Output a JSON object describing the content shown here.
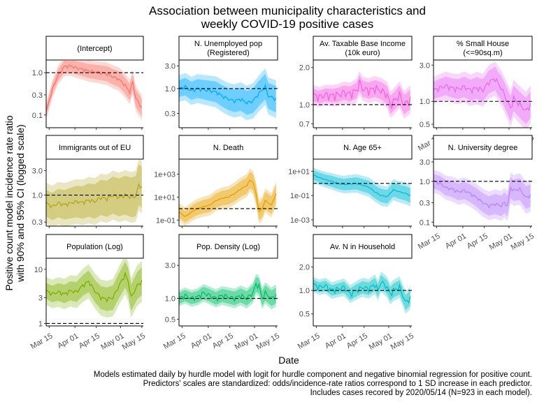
{
  "figure": {
    "title_lines": [
      "Association between municipality characteristics and",
      "weekly COVID-19 positive cases"
    ],
    "xlabel": "Date",
    "ylabel_lines": [
      "Positive count model incidence rate ratio",
      "with 90% and 95% CI (logged scale)"
    ],
    "caption_lines": [
      "Models estimated daily by hurdle model with logit for hurdle component and negative binomial regression for positive count.",
      "Predictors' scales are standardized: odds/incidence-rate ratios correspond to 1 SD increase in each predictor.",
      "Includes cases recored by 2020/05/14 (N=923 in each model)."
    ]
  },
  "chart_data": {
    "type": "line",
    "scale": "log",
    "x_range": [
      "2020-03-13",
      "2020-05-16"
    ],
    "x_ticks": [
      {
        "date": "2020-03-15",
        "label": "Mar 15"
      },
      {
        "date": "2020-04-01",
        "label": "Apr 01"
      },
      {
        "date": "2020-04-15",
        "label": "Apr 15"
      },
      {
        "date": "2020-05-01",
        "label": "May 01"
      },
      {
        "date": "2020-05-15",
        "label": "May 15"
      }
    ],
    "reference_line": 1,
    "panels": [
      {
        "label": "(Intercept)",
        "color": "#F8766D",
        "ylim": [
          0.05,
          2.0
        ],
        "y_ticks": [
          {
            "v": 0.1,
            "l": "0.1"
          },
          {
            "v": 0.3,
            "l": "0.3"
          },
          {
            "v": 1,
            "l": "1.0"
          }
        ],
        "estimate": [
          [
            0,
            0.12
          ],
          [
            4,
            0.4
          ],
          [
            8,
            0.9
          ],
          [
            12,
            1.4
          ],
          [
            16,
            1.45
          ],
          [
            20,
            1.3
          ],
          [
            24,
            1.2
          ],
          [
            28,
            1.1
          ],
          [
            32,
            1.05
          ],
          [
            36,
            1.0
          ],
          [
            40,
            0.95
          ],
          [
            44,
            0.8
          ],
          [
            48,
            0.7
          ],
          [
            52,
            0.5
          ],
          [
            55,
            0.35
          ],
          [
            57,
            0.6
          ],
          [
            59,
            0.25
          ],
          [
            63,
            0.15
          ]
        ],
        "ci90": [
          1.35,
          1.6
        ],
        "ci95": [
          1.6,
          2.0
        ]
      },
      {
        "label": "N. Unemployed pop (Registered)",
        "color": "#00A9FF",
        "ylim": [
          0.15,
          4.0
        ],
        "y_ticks": [
          {
            "v": 0.3,
            "l": "0.3"
          },
          {
            "v": 1,
            "l": "1.0"
          },
          {
            "v": 3,
            "l": "3.0"
          }
        ],
        "estimate": [
          [
            0,
            1.0
          ],
          [
            4,
            1.1
          ],
          [
            8,
            0.9
          ],
          [
            12,
            1.0
          ],
          [
            16,
            0.95
          ],
          [
            20,
            0.9
          ],
          [
            24,
            0.85
          ],
          [
            28,
            0.7
          ],
          [
            32,
            0.6
          ],
          [
            36,
            0.55
          ],
          [
            40,
            0.6
          ],
          [
            44,
            0.5
          ],
          [
            48,
            0.55
          ],
          [
            52,
            0.8
          ],
          [
            56,
            1.1
          ],
          [
            58,
            0.7
          ],
          [
            63,
            0.6
          ]
        ],
        "ci90": [
          1.5,
          1.9
        ],
        "ci95": [
          1.9,
          2.5
        ]
      },
      {
        "label": "Av. Taxable Base Income (10k euro)",
        "color": "#F564E3",
        "ylim": [
          0.65,
          2.3
        ],
        "y_ticks": [
          {
            "v": 0.7,
            "l": "0.7"
          },
          {
            "v": 1,
            "l": "1.0"
          },
          {
            "v": 2,
            "l": "2.0"
          }
        ],
        "estimate": [
          [
            0,
            1.2
          ],
          [
            4,
            1.15
          ],
          [
            8,
            1.2
          ],
          [
            12,
            1.18
          ],
          [
            16,
            1.2
          ],
          [
            20,
            1.25
          ],
          [
            24,
            1.22
          ],
          [
            28,
            1.3
          ],
          [
            30,
            1.5
          ],
          [
            32,
            1.35
          ],
          [
            36,
            1.3
          ],
          [
            40,
            1.35
          ],
          [
            44,
            1.3
          ],
          [
            48,
            1.2
          ],
          [
            50,
            1.0
          ],
          [
            52,
            1.05
          ],
          [
            56,
            1.2
          ],
          [
            59,
            1.0
          ],
          [
            63,
            1.1
          ]
        ],
        "ci90": [
          1.12,
          1.2
        ],
        "ci95": [
          1.2,
          1.3
        ]
      },
      {
        "label": "% Small House (<=90sq.m)",
        "color": "#E76BF3",
        "ylim": [
          0.45,
          3.5
        ],
        "y_ticks": [
          {
            "v": 0.5,
            "l": "0.5"
          },
          {
            "v": 1,
            "l": "1.0"
          },
          {
            "v": 3,
            "l": "3.0"
          }
        ],
        "estimate": [
          [
            0,
            1.4
          ],
          [
            4,
            1.5
          ],
          [
            8,
            1.6
          ],
          [
            12,
            1.5
          ],
          [
            16,
            1.45
          ],
          [
            20,
            1.55
          ],
          [
            24,
            1.4
          ],
          [
            28,
            1.5
          ],
          [
            32,
            1.4
          ],
          [
            36,
            1.8
          ],
          [
            40,
            2.0
          ],
          [
            42,
            1.7
          ],
          [
            44,
            1.5
          ],
          [
            48,
            1.0
          ],
          [
            50,
            0.8
          ],
          [
            52,
            1.1
          ],
          [
            56,
            0.9
          ],
          [
            60,
            0.75
          ],
          [
            63,
            0.9
          ]
        ],
        "ci90": [
          1.3,
          1.5
        ],
        "ci95": [
          1.5,
          1.8
        ]
      },
      {
        "label": "Immigrants out of EU",
        "color": "#B5A41F",
        "ylim": [
          0.25,
          5.0
        ],
        "y_ticks": [
          {
            "v": 0.3,
            "l": "0.3"
          },
          {
            "v": 1,
            "l": "1.0"
          },
          {
            "v": 3,
            "l": "3.0"
          }
        ],
        "estimate": [
          [
            0,
            0.7
          ],
          [
            4,
            0.6
          ],
          [
            8,
            0.7
          ],
          [
            12,
            0.65
          ],
          [
            16,
            0.7
          ],
          [
            20,
            0.75
          ],
          [
            24,
            0.72
          ],
          [
            28,
            0.8
          ],
          [
            32,
            0.75
          ],
          [
            36,
            0.9
          ],
          [
            40,
            0.85
          ],
          [
            44,
            1.0
          ],
          [
            48,
            0.9
          ],
          [
            52,
            1.0
          ],
          [
            56,
            0.9
          ],
          [
            59,
            0.95
          ],
          [
            61,
            1.6
          ],
          [
            63,
            1.4
          ]
        ],
        "ci90": [
          1.8,
          2.5
        ],
        "ci95": [
          2.5,
          3.2
        ]
      },
      {
        "label": "N. Death",
        "color": "#E69F00",
        "ylim": [
          0.03,
          20000
        ],
        "y_ticks": [
          {
            "v": 0.1,
            "l": "1e-01"
          },
          {
            "v": 10,
            "l": "1e+01"
          },
          {
            "v": 1000,
            "l": "1e+03"
          }
        ],
        "estimate": [
          [
            0,
            0.5
          ],
          [
            4,
            0.2
          ],
          [
            8,
            0.5
          ],
          [
            12,
            1.0
          ],
          [
            16,
            1.5
          ],
          [
            20,
            2.0
          ],
          [
            24,
            5.0
          ],
          [
            28,
            8.0
          ],
          [
            32,
            10
          ],
          [
            36,
            20
          ],
          [
            40,
            50
          ],
          [
            44,
            100
          ],
          [
            46,
            300
          ],
          [
            48,
            200
          ],
          [
            50,
            20
          ],
          [
            52,
            0.5
          ],
          [
            54,
            1.0
          ],
          [
            56,
            5.0
          ],
          [
            60,
            2.0
          ],
          [
            63,
            20
          ]
        ],
        "ci90": [
          3.0,
          6.0
        ],
        "ci95": [
          6.0,
          12.0
        ]
      },
      {
        "label": "N. Age 65+",
        "color": "#00BCD8",
        "ylim": [
          0.0003,
          100
        ],
        "y_ticks": [
          {
            "v": 0.001,
            "l": "1e-03"
          },
          {
            "v": 0.1,
            "l": "1e-01"
          },
          {
            "v": 10,
            "l": "1e+01"
          }
        ],
        "estimate": [
          [
            0,
            5.0
          ],
          [
            4,
            3.0
          ],
          [
            8,
            2.0
          ],
          [
            12,
            1.5
          ],
          [
            16,
            1.0
          ],
          [
            20,
            0.8
          ],
          [
            24,
            0.9
          ],
          [
            28,
            1.0
          ],
          [
            32,
            0.7
          ],
          [
            36,
            0.5
          ],
          [
            40,
            0.2
          ],
          [
            44,
            0.1
          ],
          [
            48,
            0.08
          ],
          [
            52,
            0.3
          ],
          [
            56,
            0.2
          ],
          [
            60,
            0.15
          ],
          [
            63,
            0.1
          ]
        ],
        "ci90": [
          2.5,
          4.0
        ],
        "ci95": [
          4.0,
          8.0
        ]
      },
      {
        "label": "N. University degree",
        "color": "#B983FF",
        "ylim": [
          0.08,
          3.5
        ],
        "y_ticks": [
          {
            "v": 0.1,
            "l": "0.1"
          },
          {
            "v": 0.3,
            "l": "0.3"
          },
          {
            "v": 1,
            "l": "1.0"
          },
          {
            "v": 3,
            "l": "3.0"
          }
        ],
        "estimate": [
          [
            0,
            1.0
          ],
          [
            4,
            0.9
          ],
          [
            8,
            0.7
          ],
          [
            12,
            0.65
          ],
          [
            16,
            0.55
          ],
          [
            20,
            0.6
          ],
          [
            24,
            0.5
          ],
          [
            28,
            0.4
          ],
          [
            32,
            0.3
          ],
          [
            36,
            0.25
          ],
          [
            40,
            0.28
          ],
          [
            44,
            0.25
          ],
          [
            46,
            0.3
          ],
          [
            48,
            0.25
          ],
          [
            50,
            0.7
          ],
          [
            52,
            0.6
          ],
          [
            56,
            0.65
          ],
          [
            60,
            0.4
          ],
          [
            63,
            0.45
          ]
        ],
        "ci90": [
          1.5,
          1.9
        ],
        "ci95": [
          1.9,
          2.5
        ]
      },
      {
        "label": "Population (Log)",
        "color": "#7CAE00",
        "ylim": [
          0.9,
          16.0
        ],
        "y_ticks": [
          {
            "v": 1,
            "l": "1"
          },
          {
            "v": 3,
            "l": "3"
          },
          {
            "v": 10,
            "l": "10"
          }
        ],
        "estimate": [
          [
            0,
            4.0
          ],
          [
            4,
            3.5
          ],
          [
            8,
            3.8
          ],
          [
            12,
            3.5
          ],
          [
            16,
            4.0
          ],
          [
            20,
            3.8
          ],
          [
            24,
            5.0
          ],
          [
            28,
            6.0
          ],
          [
            32,
            4.0
          ],
          [
            36,
            3.0
          ],
          [
            40,
            2.8
          ],
          [
            44,
            3.0
          ],
          [
            48,
            5.0
          ],
          [
            52,
            8.0
          ],
          [
            54,
            6.0
          ],
          [
            56,
            3.0
          ],
          [
            60,
            5.0
          ],
          [
            63,
            6.0
          ]
        ],
        "ci90": [
          1.4,
          1.8
        ],
        "ci95": [
          1.8,
          2.4
        ]
      },
      {
        "label": "Pop. Density (Log)",
        "color": "#00BE67",
        "ylim": [
          0.4,
          3.8
        ],
        "y_ticks": [
          {
            "v": 0.5,
            "l": "0.5"
          },
          {
            "v": 1,
            "l": "1.0"
          },
          {
            "v": 3,
            "l": "3.0"
          }
        ],
        "estimate": [
          [
            0,
            1.0
          ],
          [
            4,
            1.1
          ],
          [
            8,
            1.0
          ],
          [
            12,
            1.05
          ],
          [
            16,
            1.2
          ],
          [
            20,
            1.1
          ],
          [
            24,
            1.0
          ],
          [
            28,
            1.1
          ],
          [
            32,
            1.05
          ],
          [
            36,
            1.0
          ],
          [
            40,
            1.1
          ],
          [
            44,
            1.0
          ],
          [
            48,
            1.2
          ],
          [
            50,
            1.6
          ],
          [
            52,
            1.5
          ],
          [
            54,
            1.0
          ],
          [
            56,
            1.2
          ],
          [
            60,
            1.0
          ],
          [
            63,
            1.1
          ]
        ],
        "ci90": [
          1.2,
          1.3
        ],
        "ci95": [
          1.3,
          1.45
        ]
      },
      {
        "label": "Av. N in Household",
        "color": "#00BFC4",
        "ylim": [
          0.35,
          2.6
        ],
        "y_ticks": [
          {
            "v": 0.5,
            "l": "0.5"
          },
          {
            "v": 1,
            "l": "1.0"
          },
          {
            "v": 2,
            "l": "2.0"
          }
        ],
        "estimate": [
          [
            0,
            1.2
          ],
          [
            4,
            1.1
          ],
          [
            8,
            1.15
          ],
          [
            12,
            1.0
          ],
          [
            16,
            1.05
          ],
          [
            20,
            1.1
          ],
          [
            24,
            0.9
          ],
          [
            28,
            1.0
          ],
          [
            32,
            1.1
          ],
          [
            36,
            1.05
          ],
          [
            40,
            1.2
          ],
          [
            42,
            1.0
          ],
          [
            44,
            1.3
          ],
          [
            48,
            1.1
          ],
          [
            50,
            0.9
          ],
          [
            52,
            1.0
          ],
          [
            56,
            1.1
          ],
          [
            60,
            0.7
          ],
          [
            63,
            0.8
          ]
        ],
        "ci90": [
          1.15,
          1.25
        ],
        "ci95": [
          1.25,
          1.4
        ]
      }
    ]
  }
}
